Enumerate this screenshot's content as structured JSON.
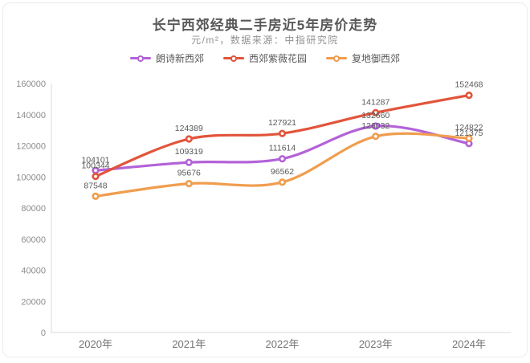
{
  "page": {
    "title": "长宁西郊经典二手房近5年房价走势",
    "subtitle": "元/m²，数据来源：中指研究院"
  },
  "chart_data": {
    "type": "line",
    "title": "长宁西郊经典二手房近5年房价走势",
    "subtitle_unit_source": "元/m²，数据来源：中指研究院",
    "categories": [
      "2020年",
      "2021年",
      "2022年",
      "2023年",
      "2024年"
    ],
    "series": [
      {
        "name": "朗诗新西郊",
        "color": "#b362d8",
        "values": [
          104101,
          109319,
          111614,
          132660,
          121375
        ]
      },
      {
        "name": "西郊紫薇花园",
        "color": "#e2543b",
        "values": [
          100344,
          124389,
          127921,
          141287,
          152468
        ]
      },
      {
        "name": "复地御西郊",
        "color": "#f09d4f",
        "values": [
          87548,
          95676,
          96562,
          126032,
          124822
        ]
      }
    ],
    "ylim": [
      0,
      160000
    ],
    "ytick_step": 20000,
    "grid": false,
    "legend_position": "top",
    "show_point_labels": true
  },
  "colors": {
    "title_text": "#595959",
    "subtitle_text": "#929292",
    "axis_line": "#d9d9d9",
    "y_tick_text": "#8c8c8c",
    "x_tick_text": "#737373",
    "point_label_text": "#595959"
  }
}
